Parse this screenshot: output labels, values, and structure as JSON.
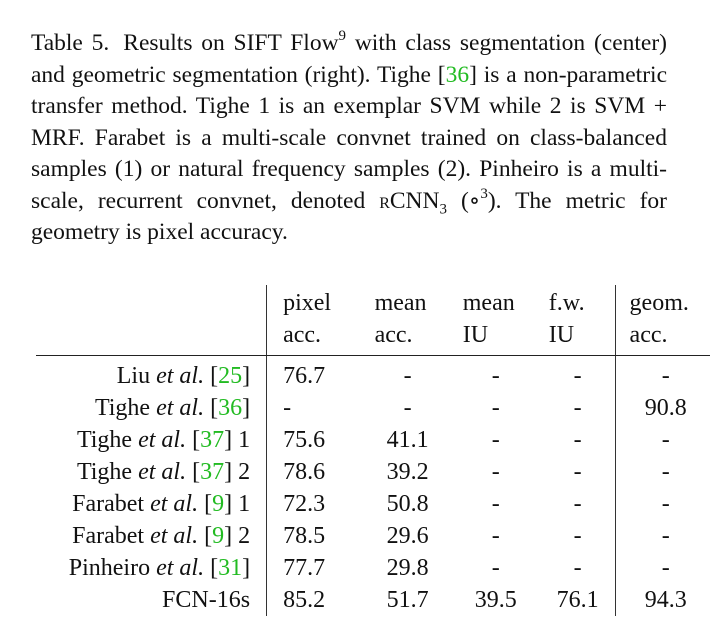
{
  "caption": {
    "label": "Table 5.",
    "part1": "Results on SIFT Flow",
    "sup1": "9",
    "part2": " with class segmentation (center) and geometric segmentation (right). Tighe [",
    "ref1": "36",
    "part3": "] is a non-parametric transfer method. Tighe 1 is an exemplar SVM while 2 is SVM + MRF. Farabet is a multi-scale convnet trained on class-balanced samples (1) or natural frequency samples (2). Pinheiro is a multi-scale, recurrent convnet, denoted ",
    "rcnn": "rCNN",
    "rcnn_sub": "3",
    "part4": " (∘",
    "sup2": "3",
    "part5": "). The metric for geometry is pixel accuracy."
  },
  "table": {
    "header_row1": [
      "pixel",
      "mean",
      "mean",
      "f.w.",
      "geom."
    ],
    "header_row2": [
      "acc.",
      "acc.",
      "IU",
      "IU",
      "acc."
    ],
    "rows": [
      {
        "name": "Liu",
        "etal": "et al.",
        "ref": "25",
        "suffix": "",
        "values": [
          "76.7",
          "-",
          "-",
          "-",
          "-"
        ]
      },
      {
        "name": "Tighe",
        "etal": "et al.",
        "ref": "36",
        "suffix": "",
        "values": [
          "-",
          "-",
          "-",
          "-",
          "90.8"
        ]
      },
      {
        "name": "Tighe",
        "etal": "et al.",
        "ref": "37",
        "suffix": " 1",
        "values": [
          "75.6",
          "41.1",
          "-",
          "-",
          "-"
        ]
      },
      {
        "name": "Tighe",
        "etal": "et al.",
        "ref": "37",
        "suffix": " 2",
        "values": [
          "78.6",
          "39.2",
          "-",
          "-",
          "-"
        ]
      },
      {
        "name": "Farabet",
        "etal": "et al.",
        "ref": "9",
        "suffix": " 1",
        "values": [
          "72.3",
          "50.8",
          "-",
          "-",
          "-"
        ]
      },
      {
        "name": "Farabet",
        "etal": "et al.",
        "ref": "9",
        "suffix": " 2",
        "values": [
          "78.5",
          "29.6",
          "-",
          "-",
          "-"
        ]
      },
      {
        "name": "Pinheiro",
        "etal": "et al.",
        "ref": "31",
        "suffix": "",
        "values": [
          "77.7",
          "29.8",
          "-",
          "-",
          "-"
        ]
      }
    ],
    "last_row": {
      "name": "FCN-16s",
      "values": [
        "85.2",
        "51.7",
        "39.5",
        "76.1",
        "94.3"
      ]
    }
  },
  "colors": {
    "citation": "#22bb22",
    "text": "#111111"
  }
}
